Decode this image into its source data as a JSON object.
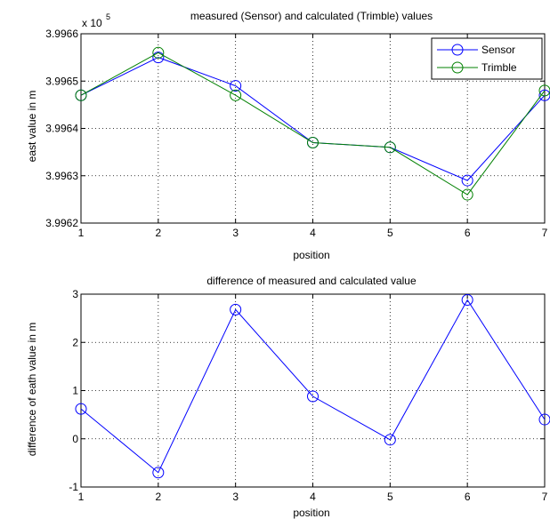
{
  "chart_data": [
    {
      "type": "line",
      "title": "measured (Sensor) and calculated (Trimble) values",
      "xlabel": "position",
      "ylabel": "east value in m",
      "y_exponent_label": "x 10",
      "y_exponent_power": "5",
      "x": [
        1,
        2,
        3,
        4,
        5,
        6,
        7
      ],
      "xlim": [
        1,
        7
      ],
      "ylim": [
        3.9962,
        3.9966
      ],
      "x_ticks": [
        "1",
        "2",
        "3",
        "4",
        "5",
        "6",
        "7"
      ],
      "y_ticks": [
        {
          "value": 3.9962,
          "label": "3.9962"
        },
        {
          "value": 3.9963,
          "label": "3.9963"
        },
        {
          "value": 3.9964,
          "label": "3.9964"
        },
        {
          "value": 3.9965,
          "label": "3.9965"
        },
        {
          "value": 3.9966,
          "label": "3.9966"
        }
      ],
      "grid": true,
      "legend_position": "top-right",
      "series": [
        {
          "name": "Sensor",
          "color": "#0000ff",
          "marker": "circle",
          "values": [
            3.99647,
            3.99655,
            3.99649,
            3.99637,
            3.99636,
            3.99629,
            3.99647
          ]
        },
        {
          "name": "Trimble",
          "color": "#008000",
          "marker": "circle",
          "values": [
            3.99647,
            3.99656,
            3.99647,
            3.99637,
            3.99636,
            3.99626,
            3.99648
          ]
        }
      ]
    },
    {
      "type": "line",
      "title": "difference of measured and calculated value",
      "xlabel": "position",
      "ylabel": "difference of eath value in m",
      "x": [
        1,
        2,
        3,
        4,
        5,
        6,
        7
      ],
      "xlim": [
        1,
        7
      ],
      "ylim": [
        -1,
        3
      ],
      "x_ticks": [
        "1",
        "2",
        "3",
        "4",
        "5",
        "6",
        "7"
      ],
      "y_ticks": [
        {
          "value": -1,
          "label": "-1"
        },
        {
          "value": 0,
          "label": "0"
        },
        {
          "value": 1,
          "label": "1"
        },
        {
          "value": 2,
          "label": "2"
        },
        {
          "value": 3,
          "label": "3"
        }
      ],
      "grid": true,
      "series": [
        {
          "color": "#0000ff",
          "marker": "circle",
          "values": [
            0.62,
            -0.7,
            2.68,
            0.88,
            -0.02,
            2.88,
            0.4
          ]
        }
      ]
    }
  ]
}
